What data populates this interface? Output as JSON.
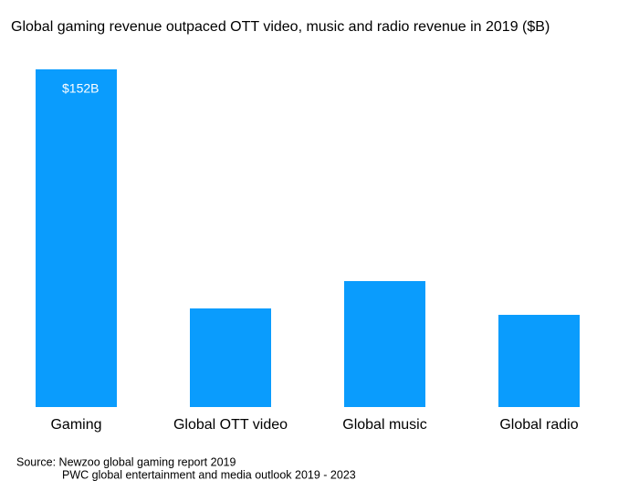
{
  "chart_data": {
    "type": "bar",
    "title": "Global gaming revenue outpaced OTT video, music and radio revenue in 2019 ($B)",
    "categories": [
      "Gaming",
      "Global OTT video",
      "Global music",
      "Global radio"
    ],
    "values": [
      152,
      44.4,
      56.7,
      41.5
    ],
    "value_labels": [
      "$152B",
      null,
      null,
      null
    ],
    "color": "#0a9cfd",
    "source": [
      "Source: Newzoo global gaming report 2019",
      "PWC global entertainment and media outlook 2019 - 2023"
    ]
  }
}
